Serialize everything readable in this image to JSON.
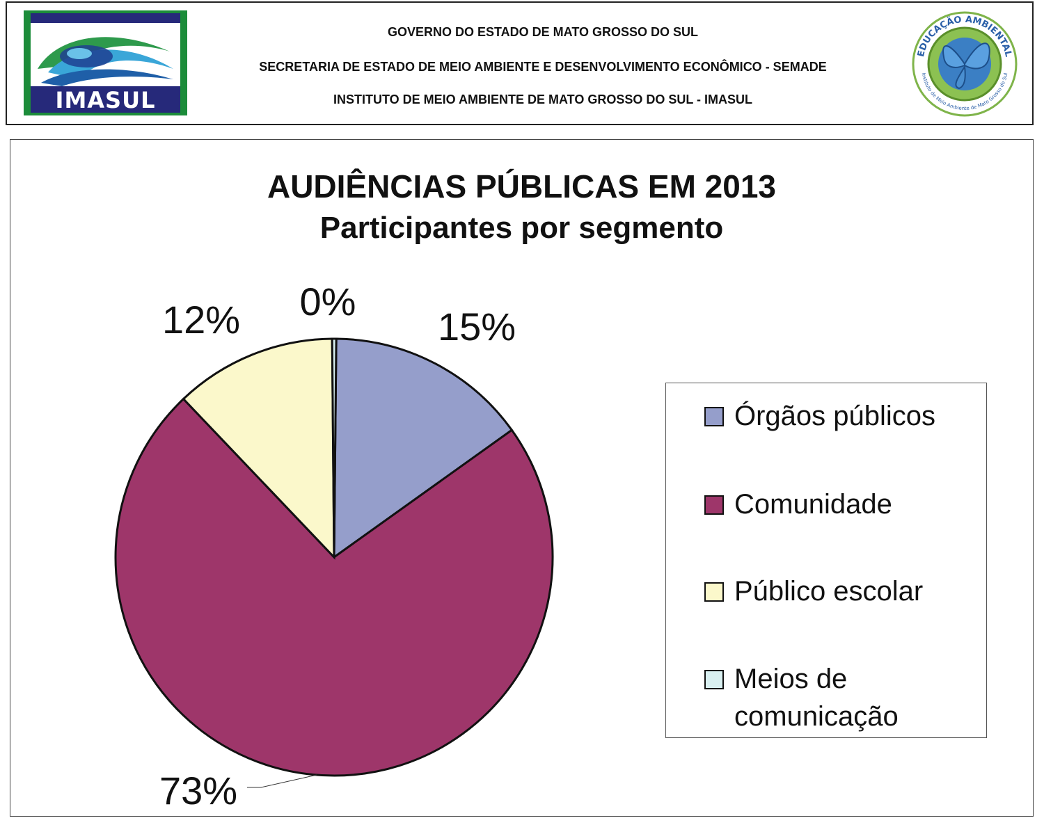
{
  "header": {
    "logo_text": "IMASUL",
    "line1": "GOVERNO DO ESTADO DE MATO GROSSO DO SUL",
    "line2": "SECRETARIA DE ESTADO DE MEIO AMBIENTE E DESENVOLVIMENTO ECONÔMICO - SEMADE",
    "line3": "INSTITUTO DE MEIO AMBIENTE DE MATO GROSSO DO SUL - IMASUL",
    "seal_text_top": "EDUCAÇÃO AMBIENTAL",
    "seal_text_bottom": "Instituto de Meio Ambiente de Mato Grosso do Sul"
  },
  "chart_data": {
    "type": "pie",
    "title": "AUDIÊNCIAS PÚBLICAS EM 2013",
    "subtitle": "Participantes por segmento",
    "categories": [
      "Órgãos públicos",
      "Comunidade",
      "Público escolar",
      "Meios de comunicação"
    ],
    "values": [
      15,
      73,
      12,
      0.3
    ],
    "data_labels": [
      "15%",
      "73%",
      "12%",
      "0%"
    ],
    "colors": [
      "#959ecb",
      "#9e366a",
      "#fbf8cb",
      "#d9f0f1"
    ],
    "legend_position": "right"
  }
}
